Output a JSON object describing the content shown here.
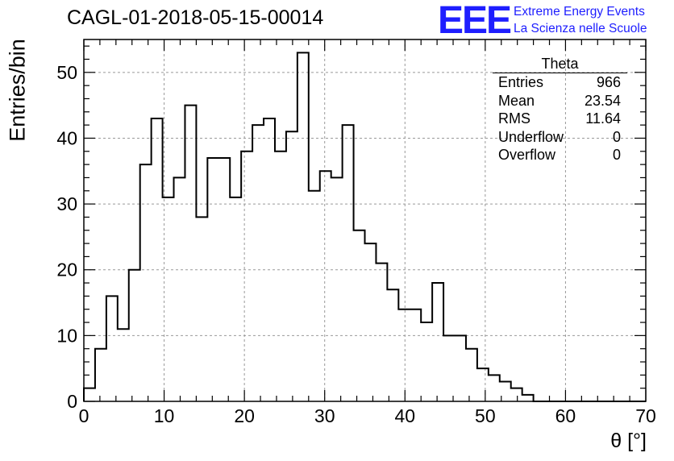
{
  "title": "CAGL-01-2018-05-15-00014",
  "logo": {
    "mark": "EEE",
    "line1": "Extreme Energy Events",
    "line2": "La Scienza nelle Scuole",
    "color": "#1e1eff"
  },
  "stats": {
    "title": "Theta",
    "rows": [
      {
        "label": "Entries",
        "value": "966"
      },
      {
        "label": "Mean",
        "value": "23.54"
      },
      {
        "label": "RMS",
        "value": "11.64"
      },
      {
        "label": "Underflow",
        "value": "0"
      },
      {
        "label": "Overflow",
        "value": "0"
      }
    ]
  },
  "chart_data": {
    "type": "histogram",
    "title": "CAGL-01-2018-05-15-00014",
    "xlabel": "θ [°]",
    "ylabel": "Entries/bin",
    "xlim": [
      0,
      70
    ],
    "ylim": [
      0,
      55
    ],
    "xticks": [
      0,
      10,
      20,
      30,
      40,
      50,
      60,
      70
    ],
    "yticks": [
      0,
      10,
      20,
      30,
      40,
      50
    ],
    "grid": true,
    "bin_width": 1.4,
    "bin_edges_start": 0,
    "values": [
      2,
      8,
      16,
      11,
      20,
      36,
      43,
      31,
      34,
      45,
      28,
      37,
      37,
      31,
      38,
      42,
      43,
      38,
      41,
      53,
      32,
      35,
      34,
      42,
      26,
      24,
      21,
      17,
      14,
      14,
      12,
      18,
      10,
      10,
      8,
      5,
      4,
      3,
      2,
      1,
      0,
      0,
      0,
      0,
      0,
      0,
      0,
      0,
      0,
      0
    ],
    "line_color": "#000000"
  }
}
